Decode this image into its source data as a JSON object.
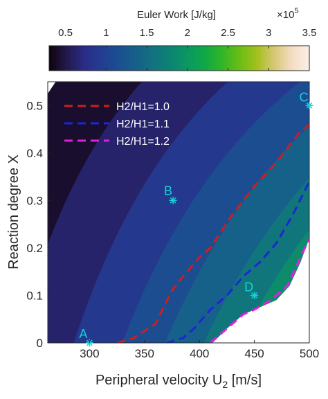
{
  "chart_data": {
    "type": "contour",
    "colorbar": {
      "title": "Euler Work [J/kg]",
      "multiplier": "×10",
      "multiplier_exponent": "5",
      "ticks": [
        0.5,
        1,
        1.5,
        2,
        2.5,
        3,
        3.5
      ],
      "tick_labels": [
        "0.5",
        "1",
        "1.5",
        "2",
        "2.5",
        "3",
        "3.5"
      ],
      "range": [
        0.3,
        3.5
      ],
      "levels": [
        0.3,
        0.5,
        0.75,
        1.0,
        1.25,
        1.5,
        1.75,
        2.0,
        2.25,
        2.5,
        2.75,
        3.0,
        3.25,
        3.5
      ]
    },
    "xlabel": "Peripheral velocity U",
    "xlabel_sub": "2",
    "xlabel_unit": " [m/s]",
    "ylabel": "Reaction degree X",
    "xlim": [
      262,
      500
    ],
    "ylim": [
      0,
      0.55
    ],
    "xticks": [
      300,
      350,
      400,
      450,
      500
    ],
    "xtick_labels": [
      "300",
      "350",
      "400",
      "450",
      "500"
    ],
    "yticks": [
      0,
      0.1,
      0.2,
      0.3,
      0.4,
      0.5
    ],
    "ytick_labels": [
      "0",
      "0.1",
      "0.2",
      "0.3",
      "0.4",
      "0.5"
    ],
    "legend_position": "top-left",
    "series": [
      {
        "name": "H2/H1=1.0",
        "color": "#cc1f1f",
        "x": [
          325,
          340,
          360,
          375,
          385,
          400,
          410,
          430,
          450,
          470,
          490,
          500
        ],
        "y": [
          0.0,
          0.01,
          0.04,
          0.11,
          0.14,
          0.18,
          0.2,
          0.27,
          0.33,
          0.38,
          0.44,
          0.46
        ]
      },
      {
        "name": "H2/H1=1.1",
        "color": "#1f24d6",
        "x": [
          370,
          385,
          395,
          410,
          425,
          440,
          455,
          470,
          485,
          500
        ],
        "y": [
          0.0,
          0.01,
          0.03,
          0.07,
          0.1,
          0.14,
          0.17,
          0.21,
          0.27,
          0.34
        ]
      },
      {
        "name": "H2/H1=1.2",
        "color": "#e01fe0",
        "x": [
          410,
          425,
          440,
          450,
          465,
          480,
          490,
          500
        ],
        "y": [
          0.0,
          0.03,
          0.06,
          0.07,
          0.09,
          0.12,
          0.17,
          0.22
        ]
      }
    ],
    "points": [
      {
        "label": "A",
        "x": 300,
        "y": 0.0
      },
      {
        "label": "B",
        "x": 376,
        "y": 0.3
      },
      {
        "label": "C",
        "x": 500,
        "y": 0.5
      },
      {
        "label": "D",
        "x": 450,
        "y": 0.1
      }
    ],
    "colors": {
      "colormap": [
        "#10040f",
        "#231a4e",
        "#2a2c86",
        "#223d92",
        "#1b4f91",
        "#166089",
        "#12727f",
        "#0d8473",
        "#0c9860",
        "#10a847",
        "#33b528",
        "#6bbd16",
        "#a3c01e",
        "#d6c773",
        "#f3dcc2",
        "#fcefe6"
      ],
      "marker": "#14d3d6",
      "invalid": "#ffffff"
    }
  }
}
